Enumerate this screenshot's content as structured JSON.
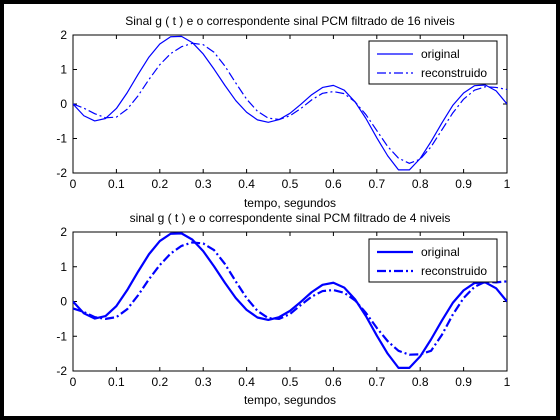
{
  "colors": {
    "figure_bg": "#000000",
    "panel_bg": "#ffffff",
    "axes_bg": "#ffffff",
    "line": "#0000ff",
    "text": "#000000"
  },
  "chart_data": [
    {
      "type": "line",
      "title": "Sinal  g ( t ) e o correspondente sinal PCM filtrado de 16 niveis",
      "xlabel": "tempo, segundos",
      "ylabel": "",
      "xlim": [
        0,
        1
      ],
      "ylim": [
        -2,
        2
      ],
      "xticks": [
        "0",
        "0.1",
        "0.2",
        "0.3",
        "0.4",
        "0.5",
        "0.6",
        "0.7",
        "0.8",
        "0.9",
        "1"
      ],
      "yticks": [
        "2",
        "1",
        "0",
        "-1",
        "-2"
      ],
      "grid": false,
      "legend_position": "top-right",
      "series": [
        {
          "name": "original",
          "style": "solid",
          "x": [
            0,
            0.025,
            0.05,
            0.075,
            0.1,
            0.125,
            0.15,
            0.175,
            0.2,
            0.225,
            0.25,
            0.275,
            0.3,
            0.325,
            0.35,
            0.375,
            0.4,
            0.425,
            0.45,
            0.475,
            0.5,
            0.525,
            0.55,
            0.575,
            0.6,
            0.625,
            0.65,
            0.675,
            0.7,
            0.725,
            0.75,
            0.775,
            0.8,
            0.825,
            0.85,
            0.875,
            0.9,
            0.925,
            0.95,
            0.975,
            1
          ],
          "y": [
            0,
            -0.34,
            -0.49,
            -0.42,
            -0.13,
            0.33,
            0.86,
            1.36,
            1.74,
            1.95,
            1.96,
            1.78,
            1.45,
            1.01,
            0.54,
            0.1,
            -0.24,
            -0.46,
            -0.53,
            -0.45,
            -0.27,
            -0.01,
            0.27,
            0.48,
            0.54,
            0.4,
            0.06,
            -0.42,
            -0.98,
            -1.5,
            -1.91,
            -1.91,
            -1.58,
            -1.09,
            -0.55,
            -0.04,
            0.32,
            0.53,
            0.55,
            0.38,
            0
          ]
        },
        {
          "name": "reconstruido",
          "style": "dashdot",
          "x": [
            0,
            0.025,
            0.05,
            0.075,
            0.1,
            0.125,
            0.15,
            0.175,
            0.2,
            0.225,
            0.25,
            0.275,
            0.3,
            0.325,
            0.35,
            0.375,
            0.4,
            0.425,
            0.45,
            0.475,
            0.5,
            0.525,
            0.55,
            0.575,
            0.6,
            0.625,
            0.65,
            0.675,
            0.7,
            0.725,
            0.75,
            0.775,
            0.8,
            0.825,
            0.85,
            0.875,
            0.9,
            0.925,
            0.95,
            0.975,
            1
          ],
          "y": [
            0,
            -0.12,
            -0.28,
            -0.4,
            -0.38,
            -0.15,
            0.24,
            0.71,
            1.14,
            1.46,
            1.66,
            1.76,
            1.72,
            1.5,
            1.1,
            0.61,
            0.14,
            -0.21,
            -0.41,
            -0.45,
            -0.34,
            -0.13,
            0.12,
            0.31,
            0.36,
            0.3,
            0.06,
            -0.31,
            -0.77,
            -1.23,
            -1.57,
            -1.72,
            -1.6,
            -1.24,
            -0.75,
            -0.26,
            0.14,
            0.4,
            0.5,
            0.48,
            0.42
          ]
        }
      ]
    },
    {
      "type": "line",
      "title": "sinal  g ( t ) e o correspondente sinal PCM filtrado de 4 niveis",
      "xlabel": "tempo, segundos",
      "ylabel": "",
      "xlim": [
        0,
        1
      ],
      "ylim": [
        -2,
        2
      ],
      "xticks": [
        "0",
        "0.1",
        "0.2",
        "0.3",
        "0.4",
        "0.5",
        "0.6",
        "0.7",
        "0.8",
        "0.9",
        "1"
      ],
      "yticks": [
        "2",
        "1",
        "0",
        "-1",
        "-2"
      ],
      "grid": false,
      "legend_position": "top-right",
      "series": [
        {
          "name": "original",
          "style": "solid",
          "x": [
            0,
            0.025,
            0.05,
            0.075,
            0.1,
            0.125,
            0.15,
            0.175,
            0.2,
            0.225,
            0.25,
            0.275,
            0.3,
            0.325,
            0.35,
            0.375,
            0.4,
            0.425,
            0.45,
            0.475,
            0.5,
            0.525,
            0.55,
            0.575,
            0.6,
            0.625,
            0.65,
            0.675,
            0.7,
            0.725,
            0.75,
            0.775,
            0.8,
            0.825,
            0.85,
            0.875,
            0.9,
            0.925,
            0.95,
            0.975,
            1
          ],
          "y": [
            0,
            -0.34,
            -0.49,
            -0.42,
            -0.13,
            0.33,
            0.86,
            1.36,
            1.74,
            1.95,
            1.96,
            1.78,
            1.45,
            1.01,
            0.54,
            0.1,
            -0.24,
            -0.46,
            -0.53,
            -0.45,
            -0.27,
            -0.01,
            0.27,
            0.48,
            0.54,
            0.4,
            0.06,
            -0.42,
            -0.98,
            -1.5,
            -1.91,
            -1.91,
            -1.58,
            -1.09,
            -0.55,
            -0.04,
            0.32,
            0.53,
            0.55,
            0.38,
            0
          ]
        },
        {
          "name": "reconstruido",
          "style": "dashdot",
          "x": [
            0,
            0.025,
            0.05,
            0.075,
            0.1,
            0.125,
            0.15,
            0.175,
            0.2,
            0.225,
            0.25,
            0.275,
            0.3,
            0.325,
            0.35,
            0.375,
            0.4,
            0.425,
            0.45,
            0.475,
            0.5,
            0.525,
            0.55,
            0.575,
            0.6,
            0.625,
            0.65,
            0.675,
            0.7,
            0.725,
            0.75,
            0.775,
            0.8,
            0.825,
            0.85,
            0.875,
            0.9,
            0.925,
            0.95,
            0.975,
            1
          ],
          "y": [
            -0.2,
            -0.3,
            -0.45,
            -0.5,
            -0.45,
            -0.22,
            0.18,
            0.64,
            1.05,
            1.38,
            1.6,
            1.7,
            1.67,
            1.48,
            1.08,
            0.58,
            0.1,
            -0.27,
            -0.48,
            -0.5,
            -0.36,
            -0.1,
            0.14,
            0.3,
            0.33,
            0.25,
            0.03,
            -0.33,
            -0.76,
            -1.14,
            -1.42,
            -1.53,
            -1.52,
            -1.42,
            -0.96,
            -0.38,
            0.1,
            0.42,
            0.57,
            0.55,
            0.58
          ]
        }
      ]
    }
  ]
}
